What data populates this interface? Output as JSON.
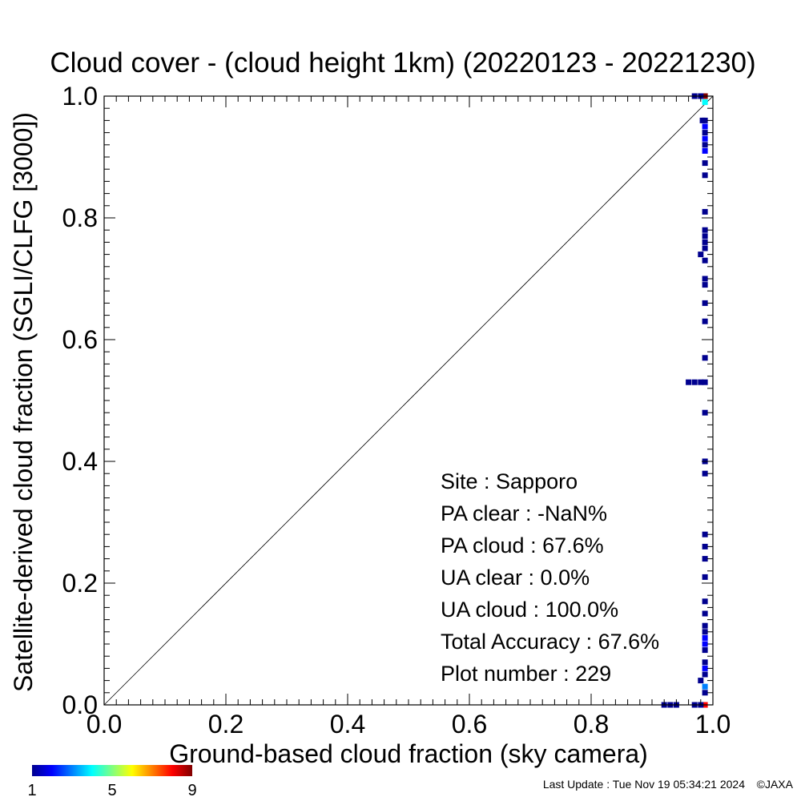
{
  "chart_data": {
    "type": "scatter",
    "title": "Cloud cover - (cloud height 1km)  (20220123 - 20221230)",
    "xlabel": "Ground-based cloud fraction (sky camera)",
    "ylabel": "Satellite-derived cloud fraction (SGLI/CLFG [3000])",
    "xlim": [
      0,
      1
    ],
    "ylim": [
      0,
      1
    ],
    "xticks": [
      "0.0",
      "0.2",
      "0.4",
      "0.6",
      "0.8",
      "1.0"
    ],
    "yticks": [
      "0.0",
      "0.2",
      "0.4",
      "0.6",
      "0.8",
      "1.0"
    ],
    "grid": false,
    "diagonal_line": true,
    "stats": [
      "Site : Sapporo",
      "PA clear :  -NaN%",
      "PA cloud :  67.6%",
      "UA clear :   0.0%",
      "UA cloud : 100.0%",
      "Total Accuracy :  67.6%",
      "Plot number :       229"
    ],
    "colorbar": {
      "min_label": "1",
      "mid_label": "5",
      "max_label": "9",
      "colors": [
        "#00008f",
        "#0000ff",
        "#0080ff",
        "#00ffff",
        "#80ff80",
        "#ffff00",
        "#ff8000",
        "#ff0000",
        "#800000"
      ]
    },
    "points": [
      {
        "x": 0.987,
        "y": 1.0,
        "count": 9
      },
      {
        "x": 0.987,
        "y": 0.99,
        "count": 4
      },
      {
        "x": 0.97,
        "y": 1.0,
        "count": 1
      },
      {
        "x": 0.98,
        "y": 1.0,
        "count": 1
      },
      {
        "x": 0.987,
        "y": 0.96,
        "count": 1
      },
      {
        "x": 0.987,
        "y": 0.95,
        "count": 2
      },
      {
        "x": 0.987,
        "y": 0.94,
        "count": 1
      },
      {
        "x": 0.987,
        "y": 0.93,
        "count": 2
      },
      {
        "x": 0.987,
        "y": 0.92,
        "count": 1
      },
      {
        "x": 0.987,
        "y": 0.91,
        "count": 2
      },
      {
        "x": 0.987,
        "y": 0.89,
        "count": 1
      },
      {
        "x": 0.987,
        "y": 0.87,
        "count": 1
      },
      {
        "x": 0.987,
        "y": 0.81,
        "count": 1
      },
      {
        "x": 0.987,
        "y": 0.78,
        "count": 1
      },
      {
        "x": 0.987,
        "y": 0.77,
        "count": 1
      },
      {
        "x": 0.987,
        "y": 0.76,
        "count": 1
      },
      {
        "x": 0.987,
        "y": 0.75,
        "count": 1
      },
      {
        "x": 0.987,
        "y": 0.73,
        "count": 1
      },
      {
        "x": 0.987,
        "y": 0.7,
        "count": 1
      },
      {
        "x": 0.987,
        "y": 0.69,
        "count": 1
      },
      {
        "x": 0.987,
        "y": 0.66,
        "count": 1
      },
      {
        "x": 0.987,
        "y": 0.63,
        "count": 1
      },
      {
        "x": 0.987,
        "y": 0.57,
        "count": 1
      },
      {
        "x": 0.987,
        "y": 0.53,
        "count": 1
      },
      {
        "x": 0.987,
        "y": 0.48,
        "count": 1
      },
      {
        "x": 0.987,
        "y": 0.4,
        "count": 1
      },
      {
        "x": 0.987,
        "y": 0.38,
        "count": 1
      },
      {
        "x": 0.987,
        "y": 0.28,
        "count": 1
      },
      {
        "x": 0.987,
        "y": 0.26,
        "count": 1
      },
      {
        "x": 0.987,
        "y": 0.24,
        "count": 1
      },
      {
        "x": 0.987,
        "y": 0.21,
        "count": 1
      },
      {
        "x": 0.987,
        "y": 0.17,
        "count": 1
      },
      {
        "x": 0.987,
        "y": 0.15,
        "count": 1
      },
      {
        "x": 0.987,
        "y": 0.13,
        "count": 1
      },
      {
        "x": 0.987,
        "y": 0.12,
        "count": 1
      },
      {
        "x": 0.987,
        "y": 0.11,
        "count": 2
      },
      {
        "x": 0.987,
        "y": 0.1,
        "count": 2
      },
      {
        "x": 0.987,
        "y": 0.09,
        "count": 1
      },
      {
        "x": 0.987,
        "y": 0.07,
        "count": 1
      },
      {
        "x": 0.987,
        "y": 0.06,
        "count": 2
      },
      {
        "x": 0.987,
        "y": 0.05,
        "count": 1
      },
      {
        "x": 0.987,
        "y": 0.03,
        "count": 3
      },
      {
        "x": 0.987,
        "y": 0.02,
        "count": 1
      },
      {
        "x": 0.987,
        "y": 0.0,
        "count": 8
      },
      {
        "x": 0.96,
        "y": 0.53,
        "count": 1
      },
      {
        "x": 0.97,
        "y": 0.53,
        "count": 1
      },
      {
        "x": 0.98,
        "y": 0.53,
        "count": 1
      },
      {
        "x": 0.983,
        "y": 0.96,
        "count": 1
      },
      {
        "x": 0.98,
        "y": 0.74,
        "count": 1
      },
      {
        "x": 0.98,
        "y": 0.04,
        "count": 1
      },
      {
        "x": 0.92,
        "y": 0.0,
        "count": 1
      },
      {
        "x": 0.93,
        "y": 0.0,
        "count": 1
      },
      {
        "x": 0.94,
        "y": 0.0,
        "count": 1
      },
      {
        "x": 0.97,
        "y": 0.0,
        "count": 1
      },
      {
        "x": 0.98,
        "y": 0.0,
        "count": 1
      }
    ]
  },
  "footer": {
    "last_update": "Last Update : Tue Nov 19 05:34:21 2024",
    "copyright": "©JAXA"
  }
}
